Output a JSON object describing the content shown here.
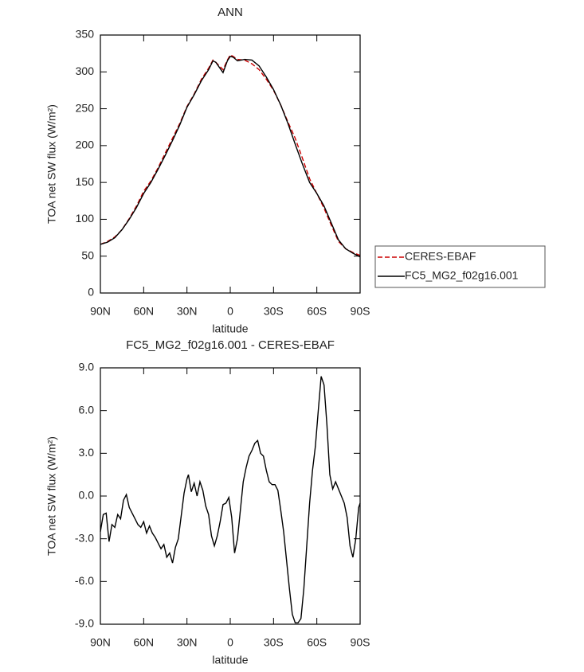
{
  "chart_data": [
    {
      "type": "line",
      "title": "ANN",
      "xlabel": "latitude",
      "ylabel": "TOA net SW flux (W/m²)",
      "xlim": [
        90,
        -90
      ],
      "ylim": [
        0,
        350
      ],
      "xticks": [
        {
          "value": 90,
          "label": "90N"
        },
        {
          "value": 60,
          "label": "60N"
        },
        {
          "value": 30,
          "label": "30N"
        },
        0,
        {
          "value": -30,
          "label": "30S"
        },
        {
          "value": -60,
          "label": "60S"
        },
        {
          "value": -90,
          "label": "90S"
        }
      ],
      "yticks": [
        0,
        50,
        100,
        150,
        200,
        250,
        300,
        350
      ],
      "legend": "right",
      "x": [
        90,
        85,
        80,
        75,
        70,
        65,
        60,
        55,
        50,
        45,
        40,
        35,
        30,
        25,
        20,
        15,
        12,
        10,
        5,
        2,
        0,
        -2,
        -5,
        -10,
        -15,
        -20,
        -25,
        -30,
        -35,
        -40,
        -45,
        -50,
        -55,
        -60,
        -65,
        -70,
        -75,
        -80,
        -85,
        -90
      ],
      "series": [
        {
          "name": "CERES-EBAF",
          "color": "#cc0000",
          "line_style": "dashed",
          "values": [
            66,
            70,
            76,
            86,
            101,
            118,
            138,
            152,
            170,
            190,
            210,
            230,
            253,
            270,
            290,
            305,
            316,
            313,
            303,
            316,
            323,
            321,
            317,
            316,
            311,
            303,
            290,
            275,
            255,
            232,
            210,
            183,
            155,
            135,
            115,
            92,
            70,
            60,
            55,
            51
          ]
        },
        {
          "name": "FC5_MG2_f02g16.001",
          "color": "#000000",
          "line_style": "solid",
          "values": [
            66,
            69,
            75,
            86,
            100,
            116,
            135,
            150,
            168,
            187,
            207,
            228,
            252,
            269,
            288,
            303,
            315,
            313,
            299,
            315,
            321,
            320,
            315,
            317,
            316,
            308,
            293,
            276,
            255,
            230,
            202,
            175,
            150,
            135,
            118,
            95,
            72,
            60,
            54,
            49
          ]
        }
      ]
    },
    {
      "type": "line",
      "title": "FC5_MG2_f02g16.001 - CERES-EBAF",
      "xlabel": "latitude",
      "ylabel": "TOA net SW flux (W/m²)",
      "xlim": [
        90,
        -90
      ],
      "ylim": [
        -9,
        9
      ],
      "xticks": [
        {
          "value": 90,
          "label": "90N"
        },
        {
          "value": 60,
          "label": "60N"
        },
        {
          "value": 30,
          "label": "30N"
        },
        0,
        {
          "value": -30,
          "label": "30S"
        },
        {
          "value": -60,
          "label": "60S"
        },
        {
          "value": -90,
          "label": "90S"
        }
      ],
      "yticks": [
        {
          "value": -9,
          "label": "-9.0"
        },
        {
          "value": -6,
          "label": "-6.0"
        },
        {
          "value": -3,
          "label": "-3.0"
        },
        {
          "value": 0,
          "label": "0.0"
        },
        {
          "value": 3,
          "label": "3.0"
        },
        {
          "value": 6,
          "label": "6.0"
        },
        {
          "value": 9,
          "label": "9.0"
        }
      ],
      "x": [
        90,
        88,
        86,
        84,
        82,
        80,
        78,
        76,
        74,
        72,
        70,
        68,
        66,
        64,
        62,
        60,
        58,
        56,
        54,
        52,
        50,
        48,
        46,
        44,
        42,
        40,
        38,
        36,
        34,
        32,
        30,
        29,
        27,
        25,
        23,
        21,
        19,
        17,
        15,
        13,
        11,
        9,
        7,
        5,
        3,
        1,
        -1,
        -3,
        -5,
        -7,
        -9,
        -11,
        -13,
        -15,
        -17,
        -19,
        -21,
        -23,
        -25,
        -27,
        -29,
        -31,
        -33,
        -35,
        -37,
        -39,
        -41,
        -43,
        -45,
        -47,
        -49,
        -51,
        -53,
        -55,
        -57,
        -59,
        -61,
        -63,
        -65,
        -67,
        -69,
        -71,
        -73,
        -75,
        -77,
        -79,
        -81,
        -83,
        -85,
        -87,
        -89,
        -90
      ],
      "series": [
        {
          "name": "FC5_MG2_f02g16.001 - CERES-EBAF",
          "color": "#000000",
          "line_style": "solid",
          "values": [
            -2.5,
            -1.3,
            -1.2,
            -3.2,
            -2.0,
            -2.2,
            -1.3,
            -1.6,
            -0.3,
            0.1,
            -0.8,
            -1.2,
            -1.6,
            -2.0,
            -2.2,
            -1.8,
            -2.6,
            -2.1,
            -2.6,
            -2.9,
            -3.3,
            -3.7,
            -3.4,
            -4.3,
            -4.0,
            -4.7,
            -3.6,
            -3.0,
            -1.4,
            0.2,
            1.2,
            1.5,
            0.3,
            0.9,
            0.0,
            1.0,
            0.4,
            -0.7,
            -1.3,
            -2.8,
            -3.5,
            -2.8,
            -1.8,
            -0.6,
            -0.5,
            -0.1,
            -1.5,
            -4.0,
            -3.0,
            -1.0,
            1.0,
            2.0,
            2.8,
            3.2,
            3.7,
            3.9,
            3.0,
            2.8,
            1.8,
            1.0,
            0.8,
            0.8,
            0.4,
            -1.0,
            -2.5,
            -4.5,
            -6.5,
            -8.3,
            -8.9,
            -8.9,
            -8.6,
            -6.5,
            -3.5,
            -0.5,
            1.8,
            3.5,
            6.0,
            8.4,
            7.8,
            5.0,
            1.5,
            0.5,
            1.0,
            0.5,
            0.0,
            -0.5,
            -1.5,
            -3.5,
            -4.3,
            -3.0,
            -0.8,
            -0.5
          ]
        }
      ]
    }
  ]
}
